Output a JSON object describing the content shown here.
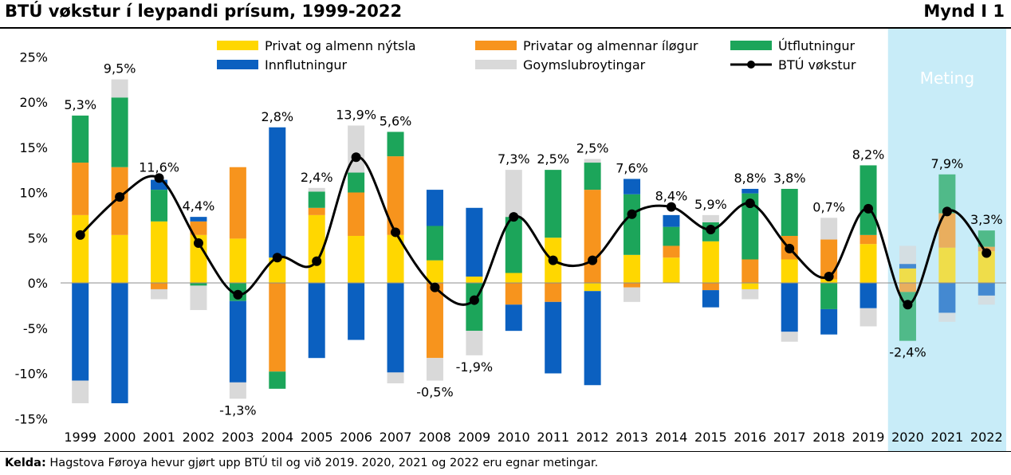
{
  "header": {
    "title": "BTÚ vøkstur í leypandi prísum, 1999-2022",
    "figure_label": "Mynd I 1"
  },
  "footer": {
    "source_label": "Kelda:",
    "source_text": "Hagstova Føroya hevur gjørt upp BTÚ til og við 2019. 2020, 2021 og 2022 eru egnar metingar."
  },
  "shaded_region": {
    "label": "Meting",
    "from": "2020",
    "to": "2022",
    "color": "#c8ecf8"
  },
  "chart_data": {
    "type": "bar",
    "stacked": true,
    "categories": [
      "1999",
      "2000",
      "2001",
      "2002",
      "2003",
      "2004",
      "2005",
      "2006",
      "2007",
      "2008",
      "2009",
      "2010",
      "2011",
      "2012",
      "2013",
      "2014",
      "2015",
      "2016",
      "2017",
      "2018",
      "2019",
      "2020",
      "2021",
      "2022"
    ],
    "ylim": [
      -15,
      25
    ],
    "yticks": [
      -15,
      -10,
      -5,
      0,
      5,
      10,
      15,
      20,
      25
    ],
    "ytick_labels": [
      "-15%",
      "-10%",
      "-5%",
      "0%",
      "5%",
      "10%",
      "15%",
      "20%",
      "25%"
    ],
    "grid": false,
    "legend": "top",
    "series": [
      {
        "name": "Privat og almenn nýtsla",
        "color": "#ffd700",
        "values": [
          7.5,
          5.3,
          6.8,
          5.3,
          4.9,
          2.8,
          7.5,
          5.2,
          5.3,
          2.5,
          0.7,
          1.1,
          5.0,
          -0.9,
          3.1,
          2.8,
          4.6,
          -0.7,
          2.6,
          0.4,
          4.3,
          1.6,
          3.9,
          3.5
        ]
      },
      {
        "name": "Privatar og almennar íløgur",
        "color": "#f7941d",
        "values": [
          5.8,
          7.5,
          -0.7,
          1.5,
          7.9,
          -9.8,
          0.8,
          4.8,
          8.7,
          -8.3,
          0.0,
          -2.4,
          -2.1,
          10.3,
          -0.5,
          1.3,
          -0.8,
          2.6,
          2.6,
          4.4,
          1.0,
          -1.0,
          3.8,
          0.5
        ]
      },
      {
        "name": "Útflutningur",
        "color": "#1ca55a",
        "values": [
          5.2,
          7.7,
          3.5,
          -0.3,
          -2.0,
          -1.9,
          1.8,
          2.2,
          2.7,
          3.8,
          -5.3,
          6.2,
          7.5,
          3.0,
          6.7,
          2.1,
          2.1,
          7.3,
          5.2,
          -2.9,
          7.7,
          -5.4,
          4.3,
          1.8
        ]
      },
      {
        "name": "Innflutningur",
        "color": "#0b60c0",
        "values": [
          -10.8,
          -13.3,
          1.1,
          0.5,
          -9.0,
          14.4,
          -8.3,
          -6.3,
          -9.9,
          4.0,
          7.6,
          -2.9,
          -7.9,
          -10.4,
          1.7,
          1.3,
          -1.9,
          0.5,
          -5.4,
          -2.8,
          -2.8,
          0.5,
          -3.3,
          -1.4
        ]
      },
      {
        "name": "Goymslubroytingar",
        "color": "#d9d9d9",
        "values": [
          -2.5,
          2.0,
          -1.1,
          -2.7,
          -1.8,
          0.0,
          0.4,
          5.2,
          -1.2,
          -2.5,
          -2.7,
          5.2,
          0.0,
          0.4,
          -1.6,
          0.0,
          0.8,
          -1.1,
          -1.1,
          2.4,
          -2.0,
          2.0,
          -1.0,
          -1.0
        ]
      }
    ],
    "line": {
      "name": "BTÚ vøkstur",
      "color": "#000000",
      "values": [
        5.3,
        9.5,
        11.6,
        4.4,
        -1.3,
        2.8,
        2.4,
        13.9,
        5.6,
        -0.5,
        -1.9,
        7.3,
        2.5,
        2.5,
        7.6,
        8.4,
        5.9,
        8.8,
        3.8,
        0.7,
        8.2,
        -2.4,
        7.9,
        3.3
      ],
      "labels": [
        "5,3%",
        "9,5%",
        "11,6%",
        "4,4%",
        "-1,3%",
        "2,8%",
        "2,4%",
        "13,9%",
        "5,6%",
        "-0,5%",
        "-1,9%",
        "7,3%",
        "2,5%",
        "2,5%",
        "7,6%",
        "8,4%",
        "5,9%",
        "8,8%",
        "3,8%",
        "0,7%",
        "8,2%",
        "-2,4%",
        "7,9%",
        "3,3%"
      ],
      "label_positions": [
        "above",
        "above",
        "above",
        "above",
        "below",
        "above",
        "above",
        "above",
        "above",
        "below",
        "below",
        "above",
        "above",
        "above",
        "above",
        "above",
        "above",
        "above",
        "above",
        "above",
        "above",
        "below",
        "above",
        "above"
      ]
    }
  }
}
